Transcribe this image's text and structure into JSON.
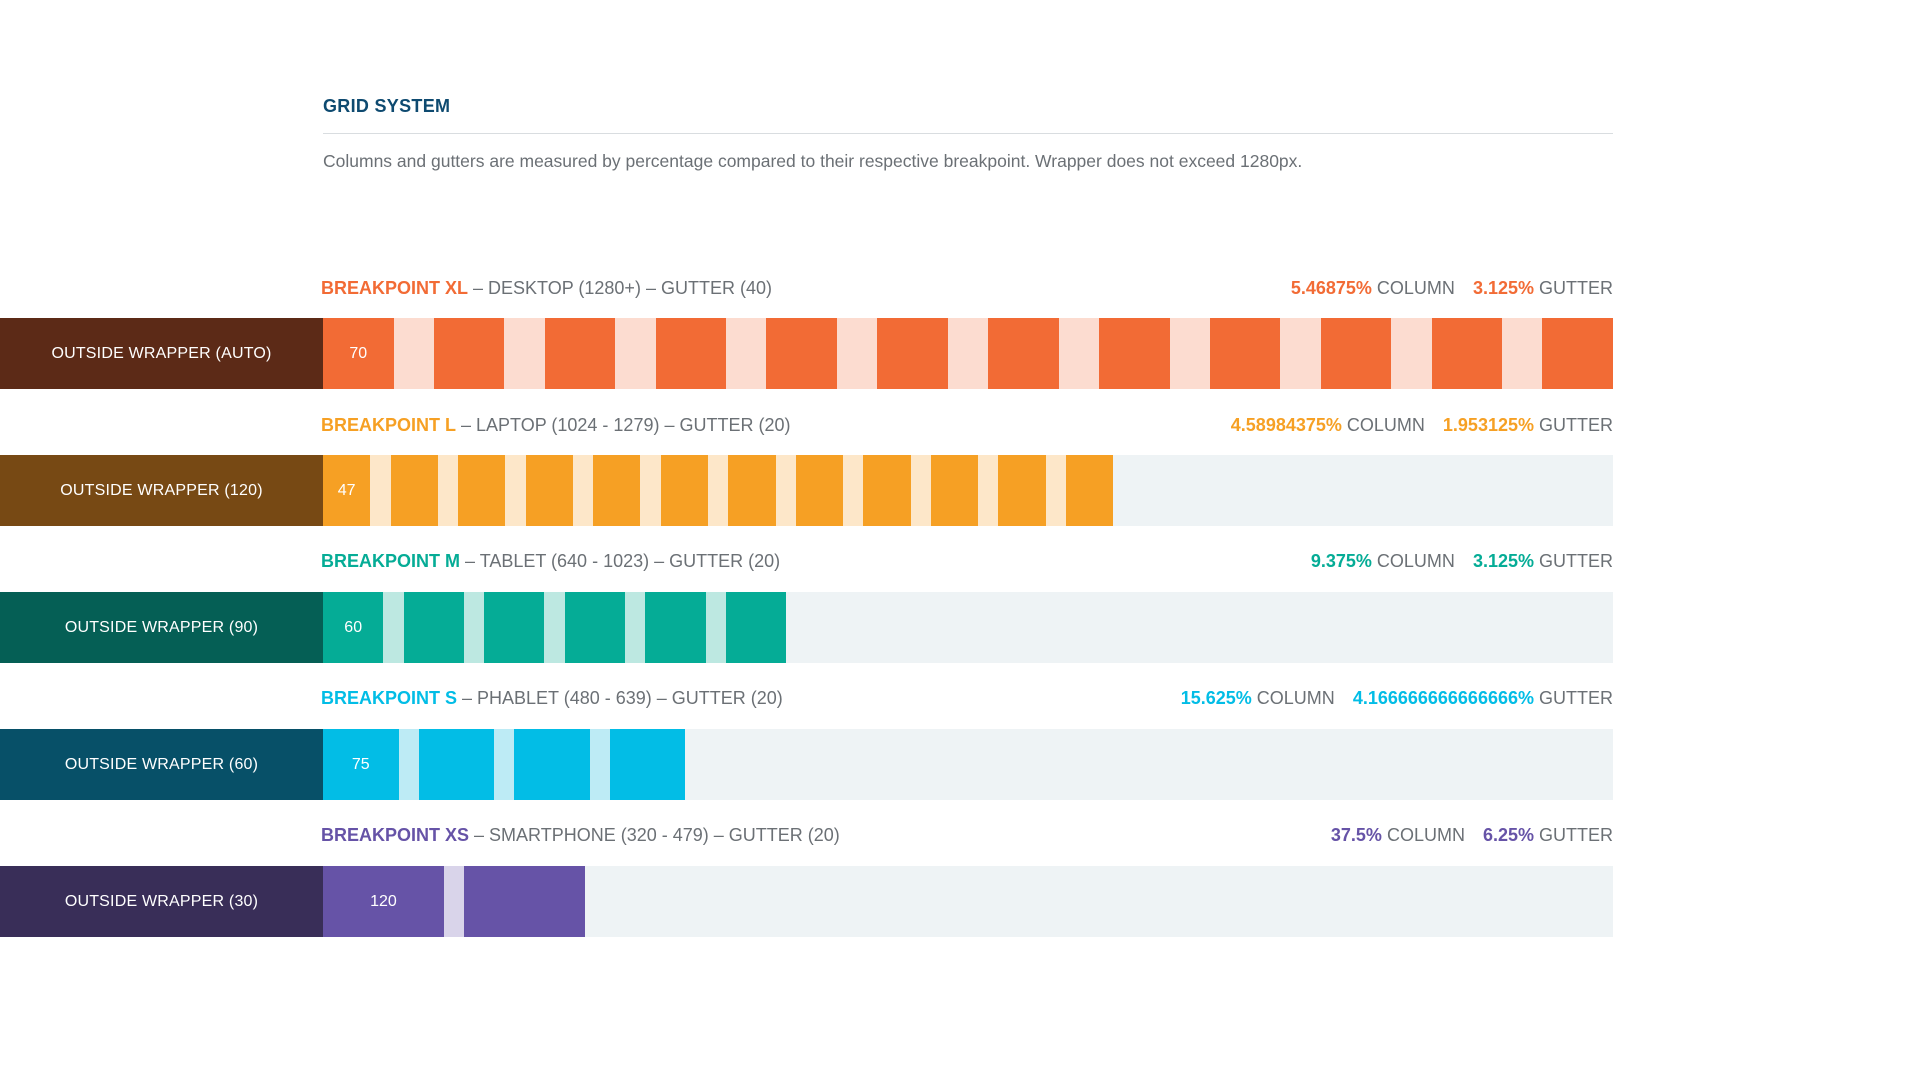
{
  "title": "GRID SYSTEM",
  "description": "Columns and gutters are measured by percentage compared to their respective breakpoint. Wrapper does not exceed 1280px.",
  "breakpoints": [
    {
      "name": "BREAKPOINT XL",
      "detail": " – DESKTOP (1280+) – GUTTER (40)",
      "column_pct": "5.46875%",
      "column_label": " COLUMN",
      "gutter_pct": "3.125%",
      "gutter_label": " GUTTER",
      "wrapper_label": "OUTSIDE WRAPPER (AUTO)",
      "column_count": 12,
      "column_width_label": "70",
      "fill_fraction": 1.0,
      "colors": {
        "accent": "#f26b35",
        "gutter": "#fcdcd0",
        "wrapper": "#5c2a17"
      }
    },
    {
      "name": "BREAKPOINT L",
      "detail": " – LAPTOP (1024 - 1279) – GUTTER (20)",
      "column_pct": "4.58984375%",
      "column_label": " COLUMN",
      "gutter_pct": "1.953125%",
      "gutter_label": " GUTTER",
      "wrapper_label": "OUTSIDE WRAPPER (120)",
      "column_count": 12,
      "column_width_label": "47",
      "fill_fraction": 0.6125,
      "colors": {
        "accent": "#f6a024",
        "gutter": "#fde7c9",
        "wrapper": "#774914"
      }
    },
    {
      "name": "BREAKPOINT M",
      "detail": " – TABLET (640 - 1023) – GUTTER (20)",
      "column_pct": "9.375%",
      "column_label": " COLUMN",
      "gutter_pct": "3.125%",
      "gutter_label": " GUTTER",
      "wrapper_label": "OUTSIDE WRAPPER (90)",
      "column_count": 6,
      "column_width_label": "60",
      "fill_fraction": 0.359,
      "colors": {
        "accent": "#05ac96",
        "gutter": "#bde8e1",
        "wrapper": "#055f55"
      }
    },
    {
      "name": "BREAKPOINT S",
      "detail": " – PHABLET (480 - 639) – GUTTER (20)",
      "column_pct": "15.625%",
      "column_label": " COLUMN",
      "gutter_pct": "4.166666666666666%",
      "gutter_label": " GUTTER",
      "wrapper_label": "OUTSIDE WRAPPER (60)",
      "column_count": 4,
      "column_width_label": "75",
      "fill_fraction": 0.281,
      "colors": {
        "accent": "#02bde6",
        "gutter": "#bdebf5",
        "wrapper": "#075068"
      }
    },
    {
      "name": "BREAKPOINT XS",
      "detail": " – SMARTPHONE (320 - 479) – GUTTER (20)",
      "column_pct": "37.5%",
      "column_label": " COLUMN",
      "gutter_pct": "6.25%",
      "gutter_label": " GUTTER",
      "wrapper_label": "OUTSIDE WRAPPER (30)",
      "column_count": 2,
      "column_width_label": "120",
      "fill_fraction": 0.203,
      "colors": {
        "accent": "#6653a7",
        "gutter": "#d9d4ea",
        "wrapper": "#392e58"
      }
    }
  ]
}
